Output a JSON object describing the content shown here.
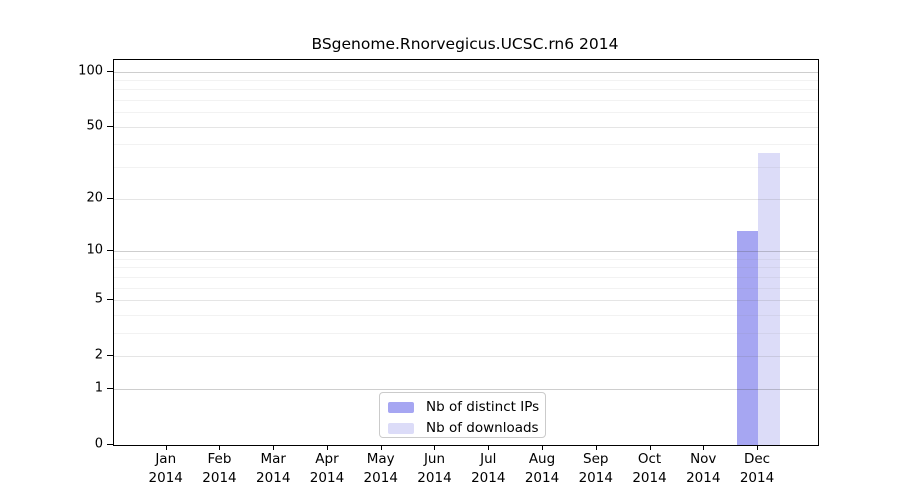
{
  "title": "BSgenome.Rnorvegicus.UCSC.rn6 2014",
  "chart_data": {
    "type": "bar",
    "title": "BSgenome.Rnorvegicus.UCSC.rn6 2014",
    "scale": "log10(value+1)",
    "grid": "horizontal",
    "xlabel": "",
    "ylabel": "",
    "year": "2014",
    "categories": [
      "Jan",
      "Feb",
      "Mar",
      "Apr",
      "May",
      "Jun",
      "Jul",
      "Aug",
      "Sep",
      "Oct",
      "Nov",
      "Dec"
    ],
    "series": [
      {
        "name": "Nb of distinct IPs",
        "color": "#a6a6f2",
        "values": [
          0,
          0,
          0,
          0,
          0,
          0,
          0,
          0,
          0,
          0,
          0,
          13
        ]
      },
      {
        "name": "Nb of downloads",
        "color": "#dcdcf8",
        "values": [
          0,
          0,
          0,
          0,
          0,
          0,
          0,
          0,
          0,
          0,
          0,
          36
        ]
      }
    ],
    "y_axis": {
      "tick_values": [
        0,
        1,
        2,
        5,
        10,
        20,
        50,
        100
      ],
      "major_gridlines": [
        1,
        10,
        100
      ],
      "mid_gridlines": [
        2,
        5,
        20,
        50
      ],
      "minor_gridlines": [
        3,
        4,
        6,
        7,
        8,
        9,
        30,
        40,
        60,
        70,
        80,
        90
      ],
      "ylim": [
        0,
        115
      ]
    },
    "legend": {
      "position": "bottom-center-inside",
      "entries": [
        "Nb of distinct IPs",
        "Nb of downloads"
      ]
    }
  }
}
